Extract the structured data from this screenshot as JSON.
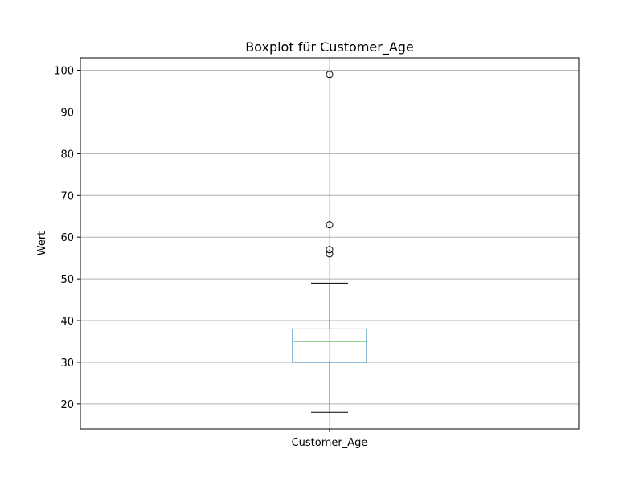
{
  "chart_data": {
    "type": "box",
    "title": "Boxplot für Customer_Age",
    "xlabel": "",
    "ylabel": "Wert",
    "categories": [
      "Customer_Age"
    ],
    "ylim": [
      14,
      103
    ],
    "yticks": [
      20,
      30,
      40,
      50,
      60,
      70,
      80,
      90,
      100
    ],
    "ytick_labels": [
      "20",
      "30",
      "40",
      "50",
      "60",
      "70",
      "80",
      "90",
      "100"
    ],
    "grid": true,
    "box": {
      "whisker_low": 18,
      "q1": 30,
      "median": 35,
      "q3": 38,
      "whisker_high": 49
    },
    "outliers": [
      56,
      57,
      63,
      99
    ],
    "colors": {
      "box": "#1f77b4",
      "median": "#2ca02c",
      "whisker_cap": "#000000",
      "outlier": "#000000",
      "grid": "#b0b0b0"
    }
  }
}
